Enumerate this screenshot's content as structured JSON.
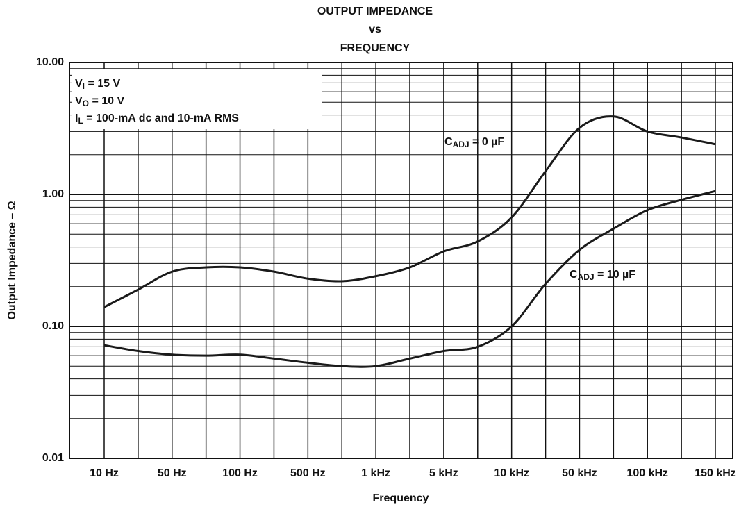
{
  "chart_data": {
    "type": "line",
    "title": [
      "OUTPUT IMPEDANCE",
      "vs",
      "FREQUENCY"
    ],
    "x_label": "Frequency",
    "y_label": "Output Impedance – Ω",
    "categories": [
      "10 Hz",
      null,
      "50 Hz",
      null,
      "100 Hz",
      null,
      "500 Hz",
      null,
      "1 kHz",
      null,
      "5 kHz",
      null,
      "10 kHz",
      null,
      "50 kHz",
      null,
      "100 kHz",
      null,
      "150 kHz"
    ],
    "log_y": true,
    "ylim": [
      0.01,
      10
    ],
    "yticks": [
      {
        "value": 0.01,
        "label": "0.01"
      },
      {
        "value": 0.1,
        "label": "0.10"
      },
      {
        "value": 1,
        "label": "1.00"
      },
      {
        "value": 10,
        "label": "10.00"
      }
    ],
    "y_minor_ticks": [
      0.02,
      0.03,
      0.04,
      0.05,
      0.06,
      0.07,
      0.08,
      0.09,
      0.2,
      0.3,
      0.4,
      0.5,
      0.6,
      0.7,
      0.8,
      0.9,
      2,
      3,
      4,
      5,
      6,
      7,
      8,
      9
    ],
    "grid": true,
    "annotations": [
      {
        "main": "V",
        "sub": "I",
        "tail": " = 15 V"
      },
      {
        "main": "V",
        "sub": "O",
        "tail": " = 10 V"
      },
      {
        "main": "I",
        "sub": "L",
        "tail": " = 100-mA dc and 10-mA RMS"
      }
    ],
    "series": [
      {
        "name": {
          "main": "C",
          "sub": "ADJ",
          "tail": " = 0 µF"
        },
        "color": "#1a1a1a",
        "values": [
          0.14,
          0.19,
          0.26,
          0.28,
          0.28,
          0.26,
          0.23,
          0.22,
          0.24,
          0.28,
          0.37,
          0.44,
          0.67,
          1.5,
          3.2,
          3.9,
          3.0,
          2.7,
          2.4
        ]
      },
      {
        "name": {
          "main": "C",
          "sub": "ADJ",
          "tail": " = 10 µF"
        },
        "color": "#1a1a1a",
        "values": [
          0.072,
          0.065,
          0.061,
          0.06,
          0.061,
          0.057,
          0.053,
          0.05,
          0.05,
          0.057,
          0.065,
          0.07,
          0.1,
          0.21,
          0.38,
          0.55,
          0.76,
          0.91,
          1.06
        ]
      }
    ]
  }
}
